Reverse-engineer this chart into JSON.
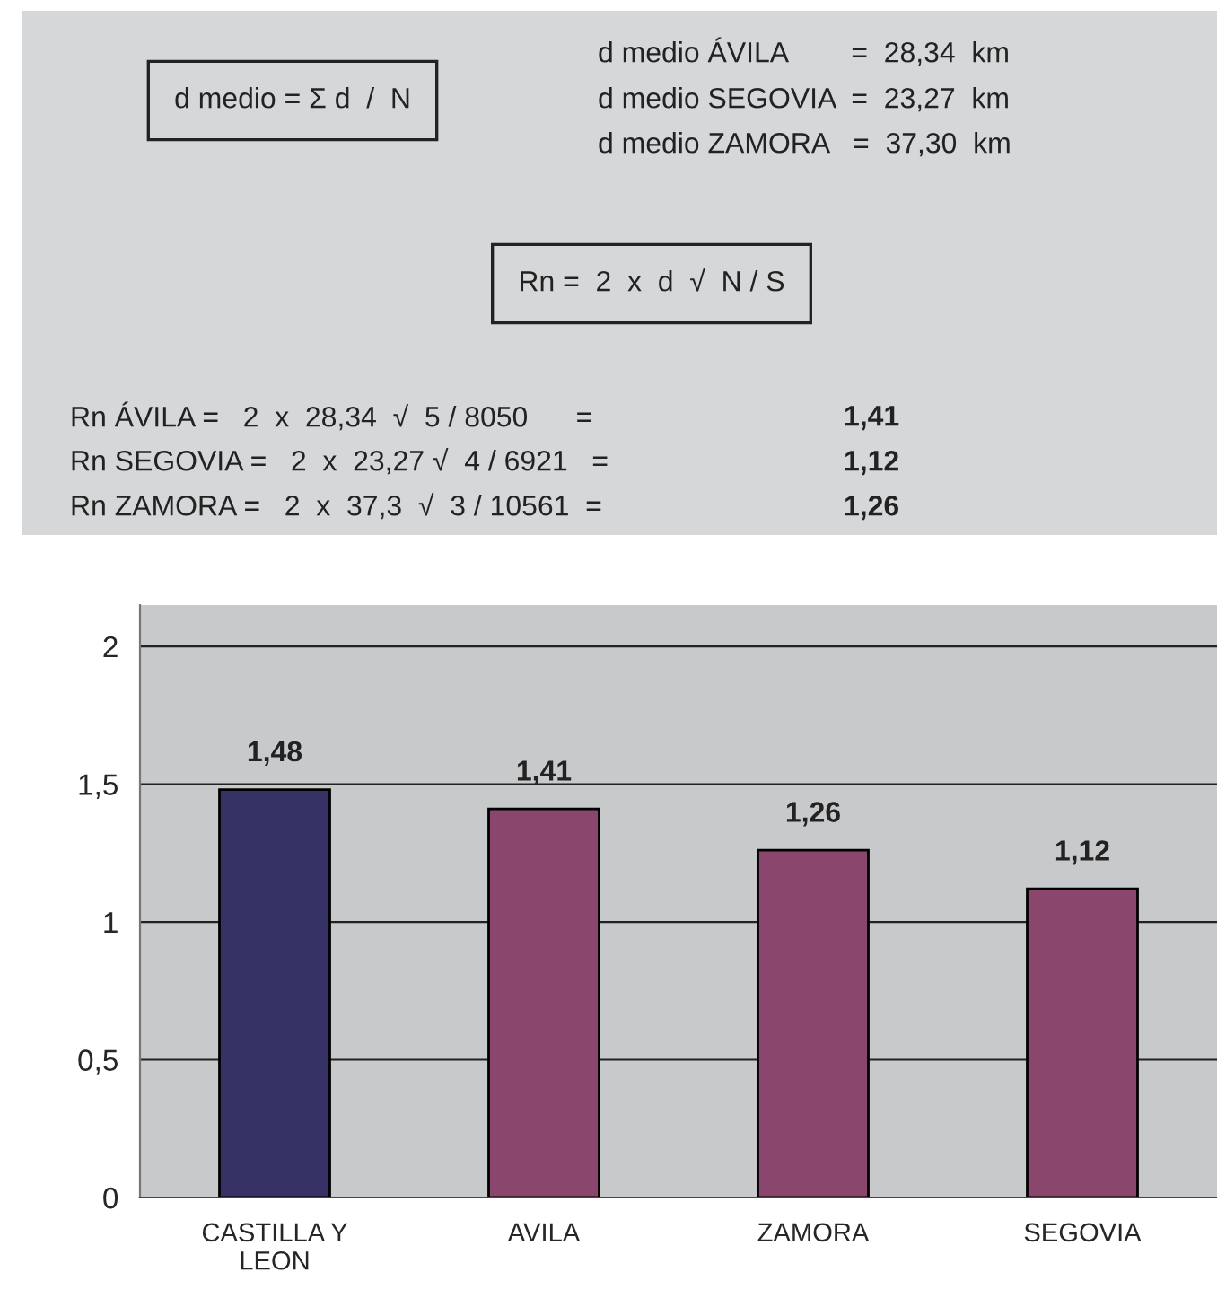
{
  "chart_data": [
    {
      "type": "other",
      "annotations": [
        "d medio = Σ d  /  N",
        "d medio ÁVILA        =  28,34  km",
        "d medio SEGOVIA  =  23,27  km",
        "d medio ZAMORA   =  37,30  km",
        "Rn =  2  x  d  √  N / S",
        "Rn ÁVILA =   2  x  28,34  √  5 / 8050      =",
        "Rn SEGOVIA =   2  x  23,27 √  4 / 6921   =",
        "Rn ZAMORA =   2  x  37,3  √  3 / 10561  =",
        "1,41",
        "1,12",
        "1,26"
      ]
    },
    {
      "type": "bar",
      "categories": [
        "CASTILLA Y\nLEON",
        "AVILA",
        "ZAMORA",
        "SEGOVIA"
      ],
      "values": [
        1.48,
        1.41,
        1.26,
        1.12
      ],
      "colors": [
        "#302a6e",
        "#963a6e",
        "#963a6e",
        "#963a6e"
      ],
      "value_labels": [
        "1,48",
        "1,41",
        "1,26",
        "1,12"
      ],
      "ylim": [
        0,
        2.15
      ],
      "yticks": [
        0,
        {
          "value": 0.5,
          "label": "0,5"
        },
        1,
        {
          "value": 1.5,
          "label": "1,5"
        },
        2
      ],
      "grid": "y"
    }
  ]
}
